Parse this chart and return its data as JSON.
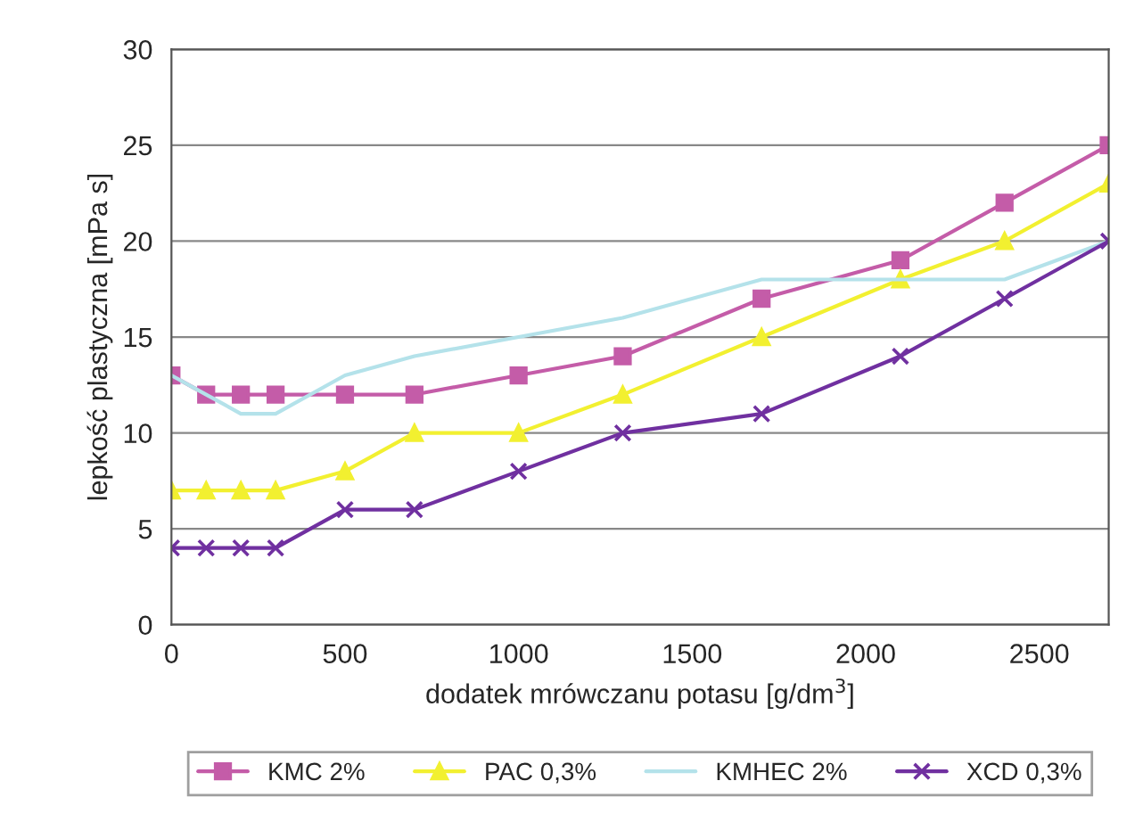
{
  "chart_data": {
    "type": "line",
    "xlabel": "dodatek mrówczanu potasu [g/dm$^{3}$]",
    "ylabel": "lepkość plastyczna [mPa s]",
    "x": [
      0,
      100,
      200,
      300,
      500,
      700,
      1000,
      1300,
      1700,
      2100,
      2400,
      2700
    ],
    "xlim": [
      0,
      2700
    ],
    "xticks": [
      0,
      500,
      1000,
      1500,
      2000,
      2500
    ],
    "ylim": [
      0,
      30
    ],
    "yticks": [
      0,
      5,
      10,
      15,
      20,
      25,
      30
    ],
    "grid": "y",
    "legend": "bottom",
    "series": [
      {
        "name": "KMC 2%",
        "color": "#c45ca8",
        "marker": "square",
        "values": [
          13,
          12,
          12,
          12,
          12,
          12,
          13,
          14,
          17,
          19,
          22,
          25
        ]
      },
      {
        "name": "PAC 0,3%",
        "color": "#f2f030",
        "marker": "triangle",
        "values": [
          7,
          7,
          7,
          7,
          8,
          10,
          10,
          12,
          15,
          18,
          20,
          23
        ]
      },
      {
        "name": "KMHEC 2%",
        "color": "#b4e2ea",
        "marker": "none",
        "values": [
          13,
          12,
          11,
          11,
          13,
          14,
          15,
          16,
          18,
          18,
          18,
          20
        ]
      },
      {
        "name": "XCD 0,3%",
        "color": "#7030a0",
        "marker": "cross",
        "values": [
          4,
          4,
          4,
          4,
          6,
          6,
          8,
          10,
          11,
          14,
          17,
          20
        ]
      }
    ]
  }
}
